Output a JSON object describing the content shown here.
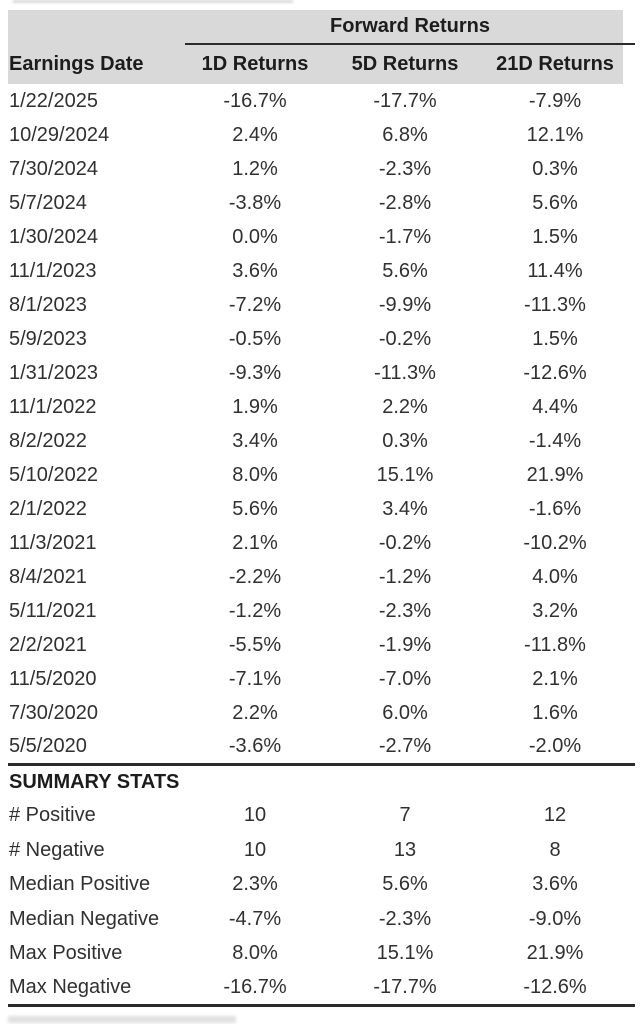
{
  "chart_data": {
    "type": "table",
    "spanner_title": "Forward Returns",
    "columns": [
      "Earnings Date",
      "1D Returns",
      "5D Returns",
      "21D Returns"
    ],
    "rows": [
      [
        "1/22/2025",
        "-16.7%",
        "-17.7%",
        "-7.9%"
      ],
      [
        "10/29/2024",
        "2.4%",
        "6.8%",
        "12.1%"
      ],
      [
        "7/30/2024",
        "1.2%",
        "-2.3%",
        "0.3%"
      ],
      [
        "5/7/2024",
        "-3.8%",
        "-2.8%",
        "5.6%"
      ],
      [
        "1/30/2024",
        "0.0%",
        "-1.7%",
        "1.5%"
      ],
      [
        "11/1/2023",
        "3.6%",
        "5.6%",
        "11.4%"
      ],
      [
        "8/1/2023",
        "-7.2%",
        "-9.9%",
        "-11.3%"
      ],
      [
        "5/9/2023",
        "-0.5%",
        "-0.2%",
        "1.5%"
      ],
      [
        "1/31/2023",
        "-9.3%",
        "-11.3%",
        "-12.6%"
      ],
      [
        "11/1/2022",
        "1.9%",
        "2.2%",
        "4.4%"
      ],
      [
        "8/2/2022",
        "3.4%",
        "0.3%",
        "-1.4%"
      ],
      [
        "5/10/2022",
        "8.0%",
        "15.1%",
        "21.9%"
      ],
      [
        "2/1/2022",
        "5.6%",
        "3.4%",
        "-1.6%"
      ],
      [
        "11/3/2021",
        "2.1%",
        "-0.2%",
        "-10.2%"
      ],
      [
        "8/4/2021",
        "-2.2%",
        "-1.2%",
        "4.0%"
      ],
      [
        "5/11/2021",
        "-1.2%",
        "-2.3%",
        "3.2%"
      ],
      [
        "2/2/2021",
        "-5.5%",
        "-1.9%",
        "-11.8%"
      ],
      [
        "11/5/2020",
        "-7.1%",
        "-7.0%",
        "2.1%"
      ],
      [
        "7/30/2020",
        "2.2%",
        "6.0%",
        "1.6%"
      ],
      [
        "5/5/2020",
        "-3.6%",
        "-2.7%",
        "-2.0%"
      ]
    ],
    "summary_title": "SUMMARY STATS",
    "summary_rows": [
      [
        "# Positive",
        "10",
        "7",
        "12"
      ],
      [
        "# Negative",
        "10",
        "13",
        "8"
      ],
      [
        "Median Positive",
        "2.3%",
        "5.6%",
        "3.6%"
      ],
      [
        "Median Negative",
        "-4.7%",
        "-2.3%",
        "-9.0%"
      ],
      [
        "Max Positive",
        "8.0%",
        "15.1%",
        "21.9%"
      ],
      [
        "Max Negative",
        "-16.7%",
        "-17.7%",
        "-12.6%"
      ]
    ],
    "layout": {
      "header_rule_span": "returns-columns-only",
      "gridlines": "none-between-data-rows"
    }
  },
  "colors": {
    "header_bg": "#d9d9d9",
    "header_text": "#1c1c1c",
    "body_text": "#303030",
    "rule_line": "#2b2b2b",
    "background": "#ffffff"
  }
}
